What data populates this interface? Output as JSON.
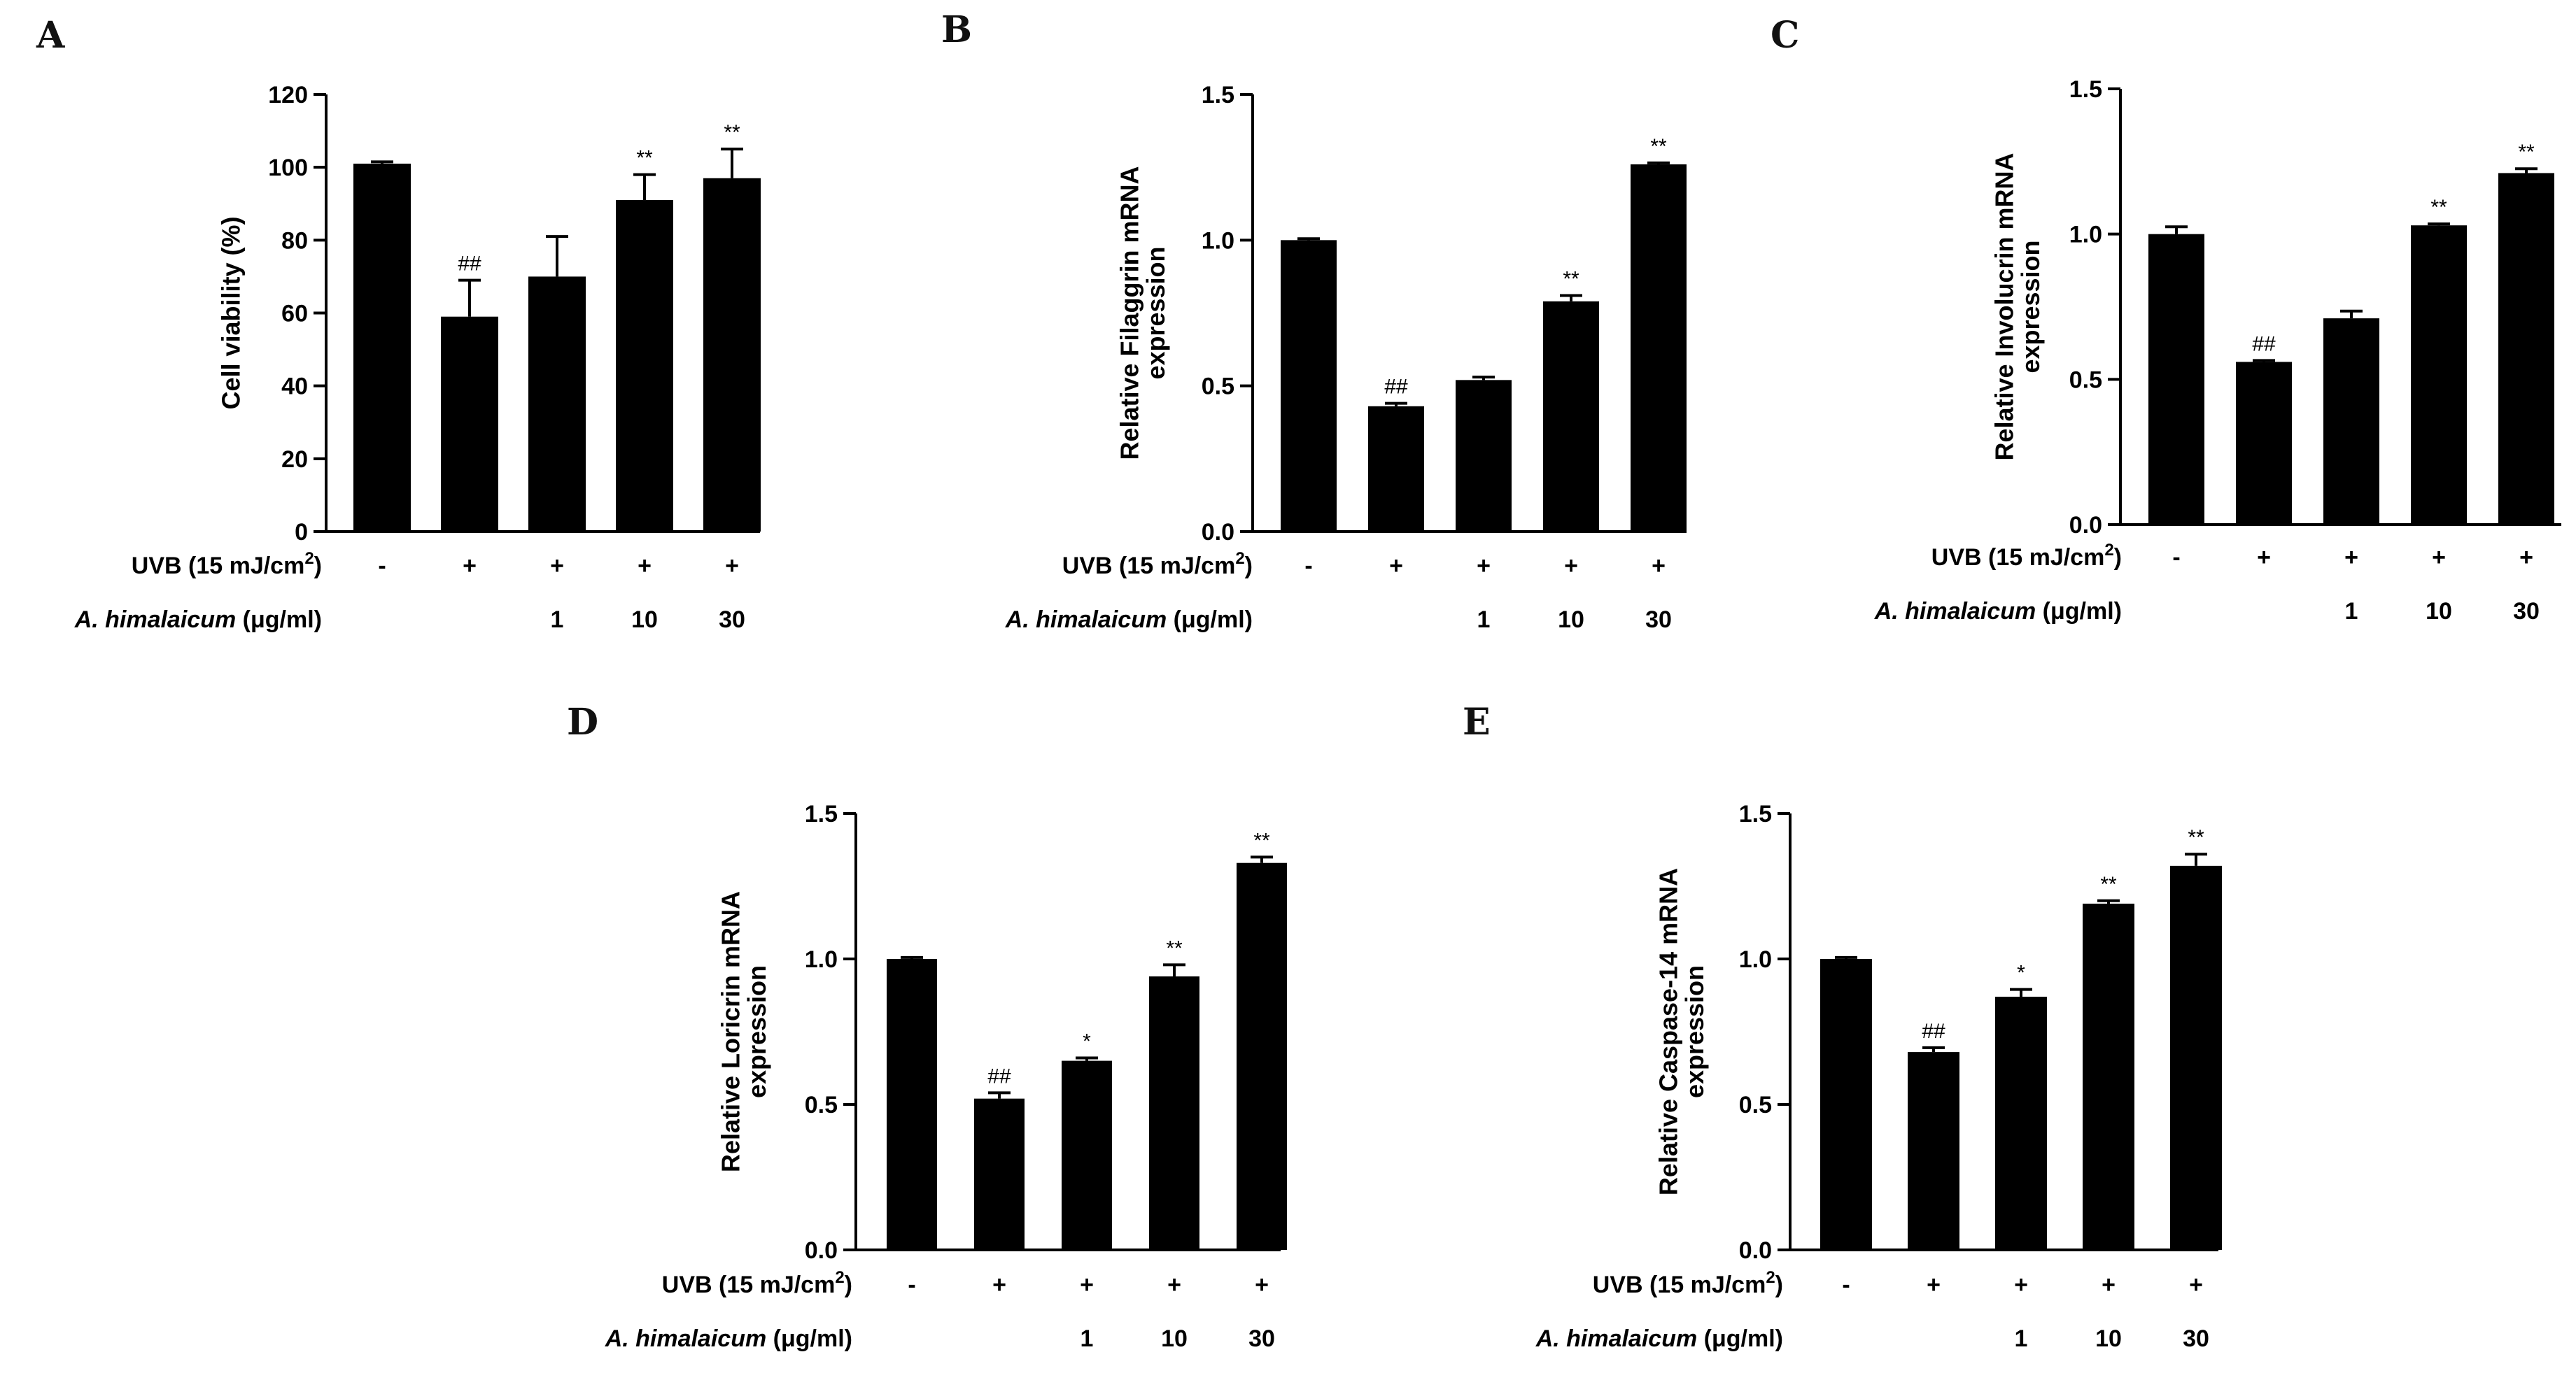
{
  "figure": {
    "row_labels": {
      "uvb_prefix": "UVB (15 mJ/cm",
      "uvb_superscript": "2",
      "uvb_suffix": ")",
      "extract_species": "A. himalaicum",
      "extract_units": " (μg/ml)"
    }
  },
  "chart_data": [
    {
      "panel": "A",
      "type": "bar",
      "title": "",
      "xlabel": "",
      "ylabel": "Cell viability (%)",
      "ylim": [
        0,
        120
      ],
      "yticks": [
        0,
        20,
        40,
        60,
        80,
        100,
        120
      ],
      "ytick_labels": [
        "0",
        "20",
        "40",
        "60",
        "80",
        "100",
        "120"
      ],
      "categories": [
        "1",
        "2",
        "3",
        "4",
        "5"
      ],
      "values": [
        101,
        59,
        70,
        91,
        97
      ],
      "errors": [
        0.5,
        10,
        11,
        7,
        8
      ],
      "significance": [
        "",
        "##",
        "",
        "**",
        "**"
      ],
      "uvb": [
        "-",
        "+",
        "+",
        "+",
        "+"
      ],
      "dose": [
        "",
        "",
        "1",
        "10",
        "30"
      ],
      "bar_color": "#000000"
    },
    {
      "panel": "B",
      "type": "bar",
      "title": "",
      "xlabel": "",
      "ylabel": "Relative Filaggrin mRNA expression",
      "ylabel_lines": [
        "Relative Filaggrin mRNA",
        "expression"
      ],
      "ylim": [
        0,
        1.5
      ],
      "yticks": [
        0,
        0.5,
        1.0,
        1.5
      ],
      "ytick_labels": [
        "0.0",
        "0.5",
        "1.0",
        "1.5"
      ],
      "categories": [
        "1",
        "2",
        "3",
        "4",
        "5"
      ],
      "values": [
        1.0,
        0.43,
        0.52,
        0.79,
        1.26
      ],
      "errors": [
        0.005,
        0.01,
        0.01,
        0.02,
        0.005
      ],
      "significance": [
        "",
        "##",
        "",
        "**",
        "**"
      ],
      "uvb": [
        "-",
        "+",
        "+",
        "+",
        "+"
      ],
      "dose": [
        "",
        "",
        "1",
        "10",
        "30"
      ],
      "bar_color": "#000000"
    },
    {
      "panel": "C",
      "type": "bar",
      "title": "",
      "xlabel": "",
      "ylabel": "Relative Involucrin mRNA expression",
      "ylabel_lines": [
        "Relative Involucrin mRNA",
        "expression"
      ],
      "ylim": [
        0,
        1.5
      ],
      "yticks": [
        0,
        0.5,
        1.0,
        1.5
      ],
      "ytick_labels": [
        "0.0",
        "0.5",
        "1.0",
        "1.5"
      ],
      "categories": [
        "1",
        "2",
        "3",
        "4",
        "5"
      ],
      "values": [
        1.0,
        0.56,
        0.71,
        1.03,
        1.21
      ],
      "errors": [
        0.025,
        0.005,
        0.025,
        0.005,
        0.015
      ],
      "significance": [
        "",
        "##",
        "",
        "**",
        "**"
      ],
      "uvb": [
        "-",
        "+",
        "+",
        "+",
        "+"
      ],
      "dose": [
        "",
        "",
        "1",
        "10",
        "30"
      ],
      "bar_color": "#000000"
    },
    {
      "panel": "D",
      "type": "bar",
      "title": "",
      "xlabel": "",
      "ylabel": "Relative Loricrin mRNA expression",
      "ylabel_lines": [
        "Relative Loricrin mRNA",
        "expression"
      ],
      "ylim": [
        0,
        1.5
      ],
      "yticks": [
        0,
        0.5,
        1.0,
        1.5
      ],
      "ytick_labels": [
        "0.0",
        "0.5",
        "1.0",
        "1.5"
      ],
      "categories": [
        "1",
        "2",
        "3",
        "4",
        "5"
      ],
      "values": [
        1.0,
        0.52,
        0.65,
        0.94,
        1.33
      ],
      "errors": [
        0.005,
        0.02,
        0.01,
        0.04,
        0.02
      ],
      "significance": [
        "",
        "##",
        "*",
        "**",
        "**"
      ],
      "uvb": [
        "-",
        "+",
        "+",
        "+",
        "+"
      ],
      "dose": [
        "",
        "",
        "1",
        "10",
        "30"
      ],
      "bar_color": "#000000"
    },
    {
      "panel": "E",
      "type": "bar",
      "title": "",
      "xlabel": "",
      "ylabel": "Relative Caspase-14 mRNA expression",
      "ylabel_lines": [
        "Relative Caspase-14 mRNA",
        "expression"
      ],
      "ylim": [
        0,
        1.5
      ],
      "yticks": [
        0,
        0.5,
        1.0,
        1.5
      ],
      "ytick_labels": [
        "0.0",
        "0.5",
        "1.0",
        "1.5"
      ],
      "categories": [
        "1",
        "2",
        "3",
        "4",
        "5"
      ],
      "values": [
        1.0,
        0.68,
        0.87,
        1.19,
        1.32
      ],
      "errors": [
        0.005,
        0.015,
        0.025,
        0.01,
        0.04
      ],
      "significance": [
        "",
        "##",
        "*",
        "**",
        "**"
      ],
      "uvb": [
        "-",
        "+",
        "+",
        "+",
        "+"
      ],
      "dose": [
        "",
        "",
        "1",
        "10",
        "30"
      ],
      "bar_color": "#000000"
    }
  ]
}
